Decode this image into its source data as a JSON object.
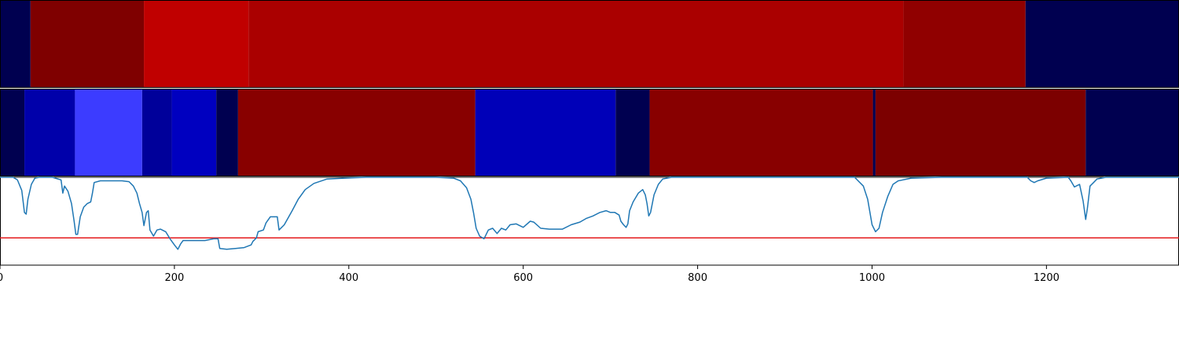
{
  "chart_data": {
    "type": "heatmap",
    "x_range": [
      0,
      1352
    ],
    "x_ticks": [
      {
        "value": 0,
        "label": "0"
      },
      {
        "value": 200,
        "label": "200"
      },
      {
        "value": 400,
        "label": "400"
      },
      {
        "value": 600,
        "label": "600"
      },
      {
        "value": 800,
        "label": "800"
      },
      {
        "value": 1000,
        "label": "1000"
      },
      {
        "value": 1200,
        "label": "1200"
      }
    ],
    "rows": [
      {
        "segments": [
          {
            "start": 0,
            "end": 35,
            "color": "#000050"
          },
          {
            "start": 35,
            "end": 165,
            "color": "#7f0000"
          },
          {
            "start": 165,
            "end": 285,
            "color": "#c00000"
          },
          {
            "start": 285,
            "end": 1036,
            "color": "#aa0000"
          },
          {
            "start": 1036,
            "end": 1176,
            "color": "#900000"
          },
          {
            "start": 1176,
            "end": 1352,
            "color": "#000050"
          }
        ]
      },
      {
        "segments": [
          {
            "start": 0,
            "end": 28,
            "color": "#000050"
          },
          {
            "start": 28,
            "end": 86,
            "color": "#0000aa"
          },
          {
            "start": 86,
            "end": 163,
            "color": "#3c3cff"
          },
          {
            "start": 163,
            "end": 197,
            "color": "#00009a"
          },
          {
            "start": 197,
            "end": 248,
            "color": "#0000c0"
          },
          {
            "start": 248,
            "end": 273,
            "color": "#000050"
          },
          {
            "start": 273,
            "end": 545,
            "color": "#880000"
          },
          {
            "start": 545,
            "end": 706,
            "color": "#0000b8"
          },
          {
            "start": 706,
            "end": 745,
            "color": "#000050"
          },
          {
            "start": 745,
            "end": 1001,
            "color": "#880000"
          },
          {
            "start": 1001,
            "end": 1004,
            "color": "#000050"
          },
          {
            "start": 1004,
            "end": 1245,
            "color": "#7c0000"
          },
          {
            "start": 1245,
            "end": 1352,
            "color": "#000050"
          }
        ]
      }
    ],
    "line": {
      "color": "#1f77b4",
      "y_range": [
        0,
        1
      ],
      "points": [
        [
          0,
          1.0
        ],
        [
          15,
          1.0
        ],
        [
          20,
          0.97
        ],
        [
          25,
          0.85
        ],
        [
          28,
          0.6
        ],
        [
          30,
          0.58
        ],
        [
          32,
          0.75
        ],
        [
          36,
          0.92
        ],
        [
          40,
          0.99
        ],
        [
          45,
          1.0
        ],
        [
          60,
          1.0
        ],
        [
          70,
          0.97
        ],
        [
          72,
          0.82
        ],
        [
          74,
          0.9
        ],
        [
          78,
          0.84
        ],
        [
          82,
          0.7
        ],
        [
          85,
          0.5
        ],
        [
          87,
          0.35
        ],
        [
          89,
          0.35
        ],
        [
          92,
          0.55
        ],
        [
          96,
          0.66
        ],
        [
          100,
          0.7
        ],
        [
          104,
          0.72
        ],
        [
          106,
          0.82
        ],
        [
          108,
          0.94
        ],
        [
          115,
          0.96
        ],
        [
          130,
          0.96
        ],
        [
          140,
          0.96
        ],
        [
          148,
          0.95
        ],
        [
          153,
          0.9
        ],
        [
          157,
          0.82
        ],
        [
          160,
          0.7
        ],
        [
          163,
          0.6
        ],
        [
          165,
          0.45
        ],
        [
          168,
          0.6
        ],
        [
          170,
          0.62
        ],
        [
          172,
          0.4
        ],
        [
          176,
          0.33
        ],
        [
          180,
          0.4
        ],
        [
          184,
          0.41
        ],
        [
          190,
          0.38
        ],
        [
          195,
          0.3
        ],
        [
          200,
          0.23
        ],
        [
          204,
          0.18
        ],
        [
          207,
          0.24
        ],
        [
          210,
          0.28
        ],
        [
          215,
          0.28
        ],
        [
          225,
          0.28
        ],
        [
          235,
          0.28
        ],
        [
          240,
          0.29
        ],
        [
          245,
          0.3
        ],
        [
          250,
          0.3
        ],
        [
          252,
          0.19
        ],
        [
          260,
          0.18
        ],
        [
          270,
          0.19
        ],
        [
          280,
          0.2
        ],
        [
          288,
          0.23
        ],
        [
          290,
          0.27
        ],
        [
          294,
          0.31
        ],
        [
          296,
          0.38
        ],
        [
          302,
          0.4
        ],
        [
          305,
          0.48
        ],
        [
          310,
          0.55
        ],
        [
          318,
          0.55
        ],
        [
          320,
          0.4
        ],
        [
          326,
          0.46
        ],
        [
          330,
          0.53
        ],
        [
          335,
          0.62
        ],
        [
          342,
          0.75
        ],
        [
          350,
          0.86
        ],
        [
          360,
          0.93
        ],
        [
          375,
          0.98
        ],
        [
          395,
          0.99
        ],
        [
          420,
          1.0
        ],
        [
          500,
          1.0
        ],
        [
          520,
          0.99
        ],
        [
          528,
          0.96
        ],
        [
          535,
          0.88
        ],
        [
          540,
          0.75
        ],
        [
          543,
          0.6
        ],
        [
          546,
          0.42
        ],
        [
          550,
          0.33
        ],
        [
          555,
          0.3
        ],
        [
          560,
          0.4
        ],
        [
          565,
          0.42
        ],
        [
          570,
          0.36
        ],
        [
          575,
          0.42
        ],
        [
          580,
          0.4
        ],
        [
          585,
          0.46
        ],
        [
          592,
          0.47
        ],
        [
          600,
          0.43
        ],
        [
          608,
          0.5
        ],
        [
          612,
          0.49
        ],
        [
          620,
          0.42
        ],
        [
          630,
          0.41
        ],
        [
          645,
          0.41
        ],
        [
          655,
          0.46
        ],
        [
          665,
          0.49
        ],
        [
          672,
          0.53
        ],
        [
          680,
          0.56
        ],
        [
          688,
          0.6
        ],
        [
          695,
          0.62
        ],
        [
          700,
          0.6
        ],
        [
          705,
          0.6
        ],
        [
          710,
          0.57
        ],
        [
          712,
          0.5
        ],
        [
          715,
          0.46
        ],
        [
          718,
          0.43
        ],
        [
          720,
          0.47
        ],
        [
          722,
          0.62
        ],
        [
          726,
          0.72
        ],
        [
          732,
          0.82
        ],
        [
          737,
          0.86
        ],
        [
          740,
          0.8
        ],
        [
          742,
          0.7
        ],
        [
          744,
          0.56
        ],
        [
          746,
          0.6
        ],
        [
          750,
          0.8
        ],
        [
          755,
          0.92
        ],
        [
          760,
          0.98
        ],
        [
          770,
          1.0
        ],
        [
          980,
          1.0
        ],
        [
          990,
          0.9
        ],
        [
          995,
          0.75
        ],
        [
          1000,
          0.46
        ],
        [
          1004,
          0.38
        ],
        [
          1008,
          0.42
        ],
        [
          1012,
          0.6
        ],
        [
          1018,
          0.78
        ],
        [
          1024,
          0.92
        ],
        [
          1030,
          0.96
        ],
        [
          1045,
          0.99
        ],
        [
          1080,
          1.0
        ],
        [
          1178,
          1.0
        ],
        [
          1182,
          0.96
        ],
        [
          1186,
          0.94
        ],
        [
          1190,
          0.96
        ],
        [
          1200,
          0.99
        ],
        [
          1225,
          1.0
        ],
        [
          1228,
          0.96
        ],
        [
          1232,
          0.89
        ],
        [
          1238,
          0.92
        ],
        [
          1242,
          0.73
        ],
        [
          1245,
          0.52
        ],
        [
          1247,
          0.65
        ],
        [
          1250,
          0.9
        ],
        [
          1253,
          0.93
        ],
        [
          1258,
          0.98
        ],
        [
          1268,
          1.0
        ],
        [
          1352,
          1.0
        ]
      ]
    },
    "threshold": {
      "value": 0.31,
      "color": "#e41a1c"
    }
  }
}
